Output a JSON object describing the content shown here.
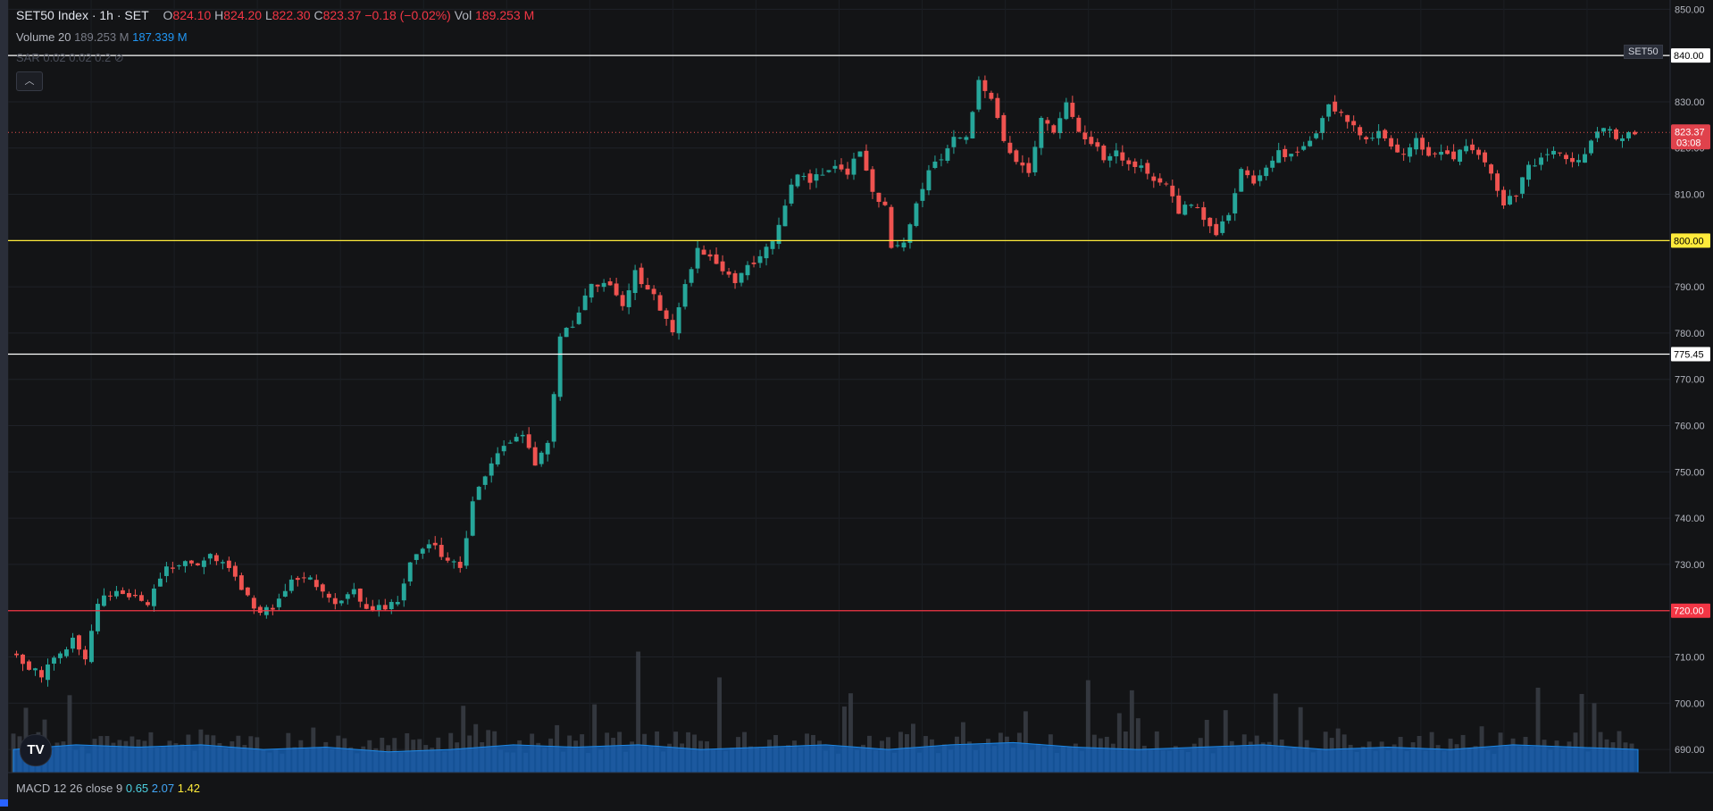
{
  "header": {
    "symbol": "SET50 Index · 1h · SET",
    "o_label": "O",
    "o_value": "824.10",
    "h_label": "H",
    "h_value": "824.20",
    "l_label": "L",
    "l_value": "822.30",
    "c_label": "C",
    "c_value": "823.37",
    "change": "−0.18 (−0.02%)",
    "vol_label": "Vol",
    "vol_value": "189.253 M"
  },
  "volume_indicator": {
    "label": "Volume 20",
    "value1": "189.253 M",
    "value2": "187.339 M"
  },
  "sar_indicator": {
    "label": "SAR 0.02 0.02 0.2"
  },
  "macd_indicator": {
    "label": "MACD 12 26 close 9",
    "v1": "0.65",
    "v2": "2.07",
    "v3": "1.42"
  },
  "symbol_tag": "SET50",
  "collapse_icon_name": "chevron-up-icon",
  "colors": {
    "background": "#131416",
    "up": "#26a69a",
    "down": "#ef5350",
    "volume_ma": "#1565c0"
  },
  "chart_data": {
    "type": "candlestick",
    "title": "",
    "ylim": [
      685,
      852
    ],
    "y_ticks": [
      "690.00",
      "700.00",
      "710.00",
      "720.00",
      "730.00",
      "740.00",
      "750.00",
      "760.00",
      "770.00",
      "780.00",
      "790.00",
      "800.00",
      "810.00",
      "820.00",
      "830.00",
      "840.00",
      "850.00"
    ],
    "horizontal_levels": [
      {
        "value": 840.0,
        "label": "840.00",
        "color": "#ffffff"
      },
      {
        "value": 800.0,
        "label": "800.00",
        "color": "#ffeb3b"
      },
      {
        "value": 775.45,
        "label": "775.45",
        "color": "#ffffff"
      },
      {
        "value": 720.0,
        "label": "720.00",
        "color": "#f23645"
      }
    ],
    "last_price": {
      "value": 823.37,
      "label": "823.37",
      "countdown": "03:08"
    },
    "price_path": [
      [
        0,
        711
      ],
      [
        5,
        706
      ],
      [
        10,
        714
      ],
      [
        12,
        709
      ],
      [
        14,
        722
      ],
      [
        18,
        724
      ],
      [
        22,
        722
      ],
      [
        25,
        729
      ],
      [
        28,
        731
      ],
      [
        30,
        730
      ],
      [
        32,
        733
      ],
      [
        36,
        727
      ],
      [
        38,
        723
      ],
      [
        40,
        719
      ],
      [
        42,
        721
      ],
      [
        45,
        726
      ],
      [
        48,
        727
      ],
      [
        52,
        721
      ],
      [
        55,
        724
      ],
      [
        57,
        720
      ],
      [
        60,
        721
      ],
      [
        62,
        722
      ],
      [
        64,
        730
      ],
      [
        67,
        735
      ],
      [
        70,
        731
      ],
      [
        72,
        729
      ],
      [
        74,
        743
      ],
      [
        77,
        752
      ],
      [
        80,
        757
      ],
      [
        82,
        758
      ],
      [
        84,
        752
      ],
      [
        86,
        756
      ],
      [
        88,
        779
      ],
      [
        90,
        782
      ],
      [
        93,
        790
      ],
      [
        96,
        791
      ],
      [
        98,
        786
      ],
      [
        100,
        793
      ],
      [
        103,
        788
      ],
      [
        106,
        780
      ],
      [
        108,
        791
      ],
      [
        110,
        798
      ],
      [
        112,
        796
      ],
      [
        114,
        794
      ],
      [
        116,
        791
      ],
      [
        118,
        794
      ],
      [
        120,
        797
      ],
      [
        122,
        800
      ],
      [
        124,
        808
      ],
      [
        126,
        815
      ],
      [
        128,
        813
      ],
      [
        131,
        816
      ],
      [
        134,
        815
      ],
      [
        136,
        819
      ],
      [
        138,
        810
      ],
      [
        140,
        808
      ],
      [
        141,
        799
      ],
      [
        143,
        799
      ],
      [
        145,
        808
      ],
      [
        147,
        815
      ],
      [
        149,
        818
      ],
      [
        151,
        823
      ],
      [
        153,
        822
      ],
      [
        155,
        835
      ],
      [
        157,
        831
      ],
      [
        159,
        821
      ],
      [
        161,
        817
      ],
      [
        163,
        815
      ],
      [
        165,
        827
      ],
      [
        167,
        824
      ],
      [
        169,
        830
      ],
      [
        171,
        824
      ],
      [
        173,
        821
      ],
      [
        175,
        818
      ],
      [
        177,
        820
      ],
      [
        179,
        816
      ],
      [
        181,
        816
      ],
      [
        183,
        813
      ],
      [
        185,
        812
      ],
      [
        187,
        806
      ],
      [
        189,
        808
      ],
      [
        191,
        805
      ],
      [
        193,
        801
      ],
      [
        195,
        806
      ],
      [
        197,
        815
      ],
      [
        199,
        812
      ],
      [
        201,
        816
      ],
      [
        203,
        819
      ],
      [
        205,
        818
      ],
      [
        207,
        821
      ],
      [
        209,
        823
      ],
      [
        211,
        829
      ],
      [
        213,
        827
      ],
      [
        215,
        825
      ],
      [
        217,
        822
      ],
      [
        219,
        823
      ],
      [
        221,
        820
      ],
      [
        223,
        819
      ],
      [
        225,
        822
      ],
      [
        227,
        818
      ],
      [
        229,
        819
      ],
      [
        231,
        818
      ],
      [
        233,
        820
      ],
      [
        235,
        818
      ],
      [
        237,
        815
      ],
      [
        239,
        808
      ],
      [
        241,
        810
      ],
      [
        243,
        816
      ],
      [
        245,
        818
      ],
      [
        247,
        820
      ],
      [
        249,
        818
      ],
      [
        251,
        817
      ],
      [
        253,
        821
      ],
      [
        255,
        825
      ],
      [
        257,
        822
      ],
      [
        260,
        823.37
      ]
    ],
    "volume_ma_path": [
      [
        0,
        690
      ],
      [
        10,
        691
      ],
      [
        20,
        690.5
      ],
      [
        30,
        691
      ],
      [
        40,
        690
      ],
      [
        50,
        690.5
      ],
      [
        60,
        689.5
      ],
      [
        70,
        690
      ],
      [
        80,
        691
      ],
      [
        90,
        690.5
      ],
      [
        100,
        691
      ],
      [
        110,
        690
      ],
      [
        120,
        690.5
      ],
      [
        130,
        691
      ],
      [
        140,
        690
      ],
      [
        150,
        691
      ],
      [
        160,
        691.5
      ],
      [
        170,
        690.5
      ],
      [
        180,
        690
      ],
      [
        190,
        690.5
      ],
      [
        200,
        691
      ],
      [
        210,
        690
      ],
      [
        220,
        690.5
      ],
      [
        230,
        690
      ],
      [
        240,
        691
      ],
      [
        250,
        690.5
      ],
      [
        260,
        690
      ]
    ]
  }
}
